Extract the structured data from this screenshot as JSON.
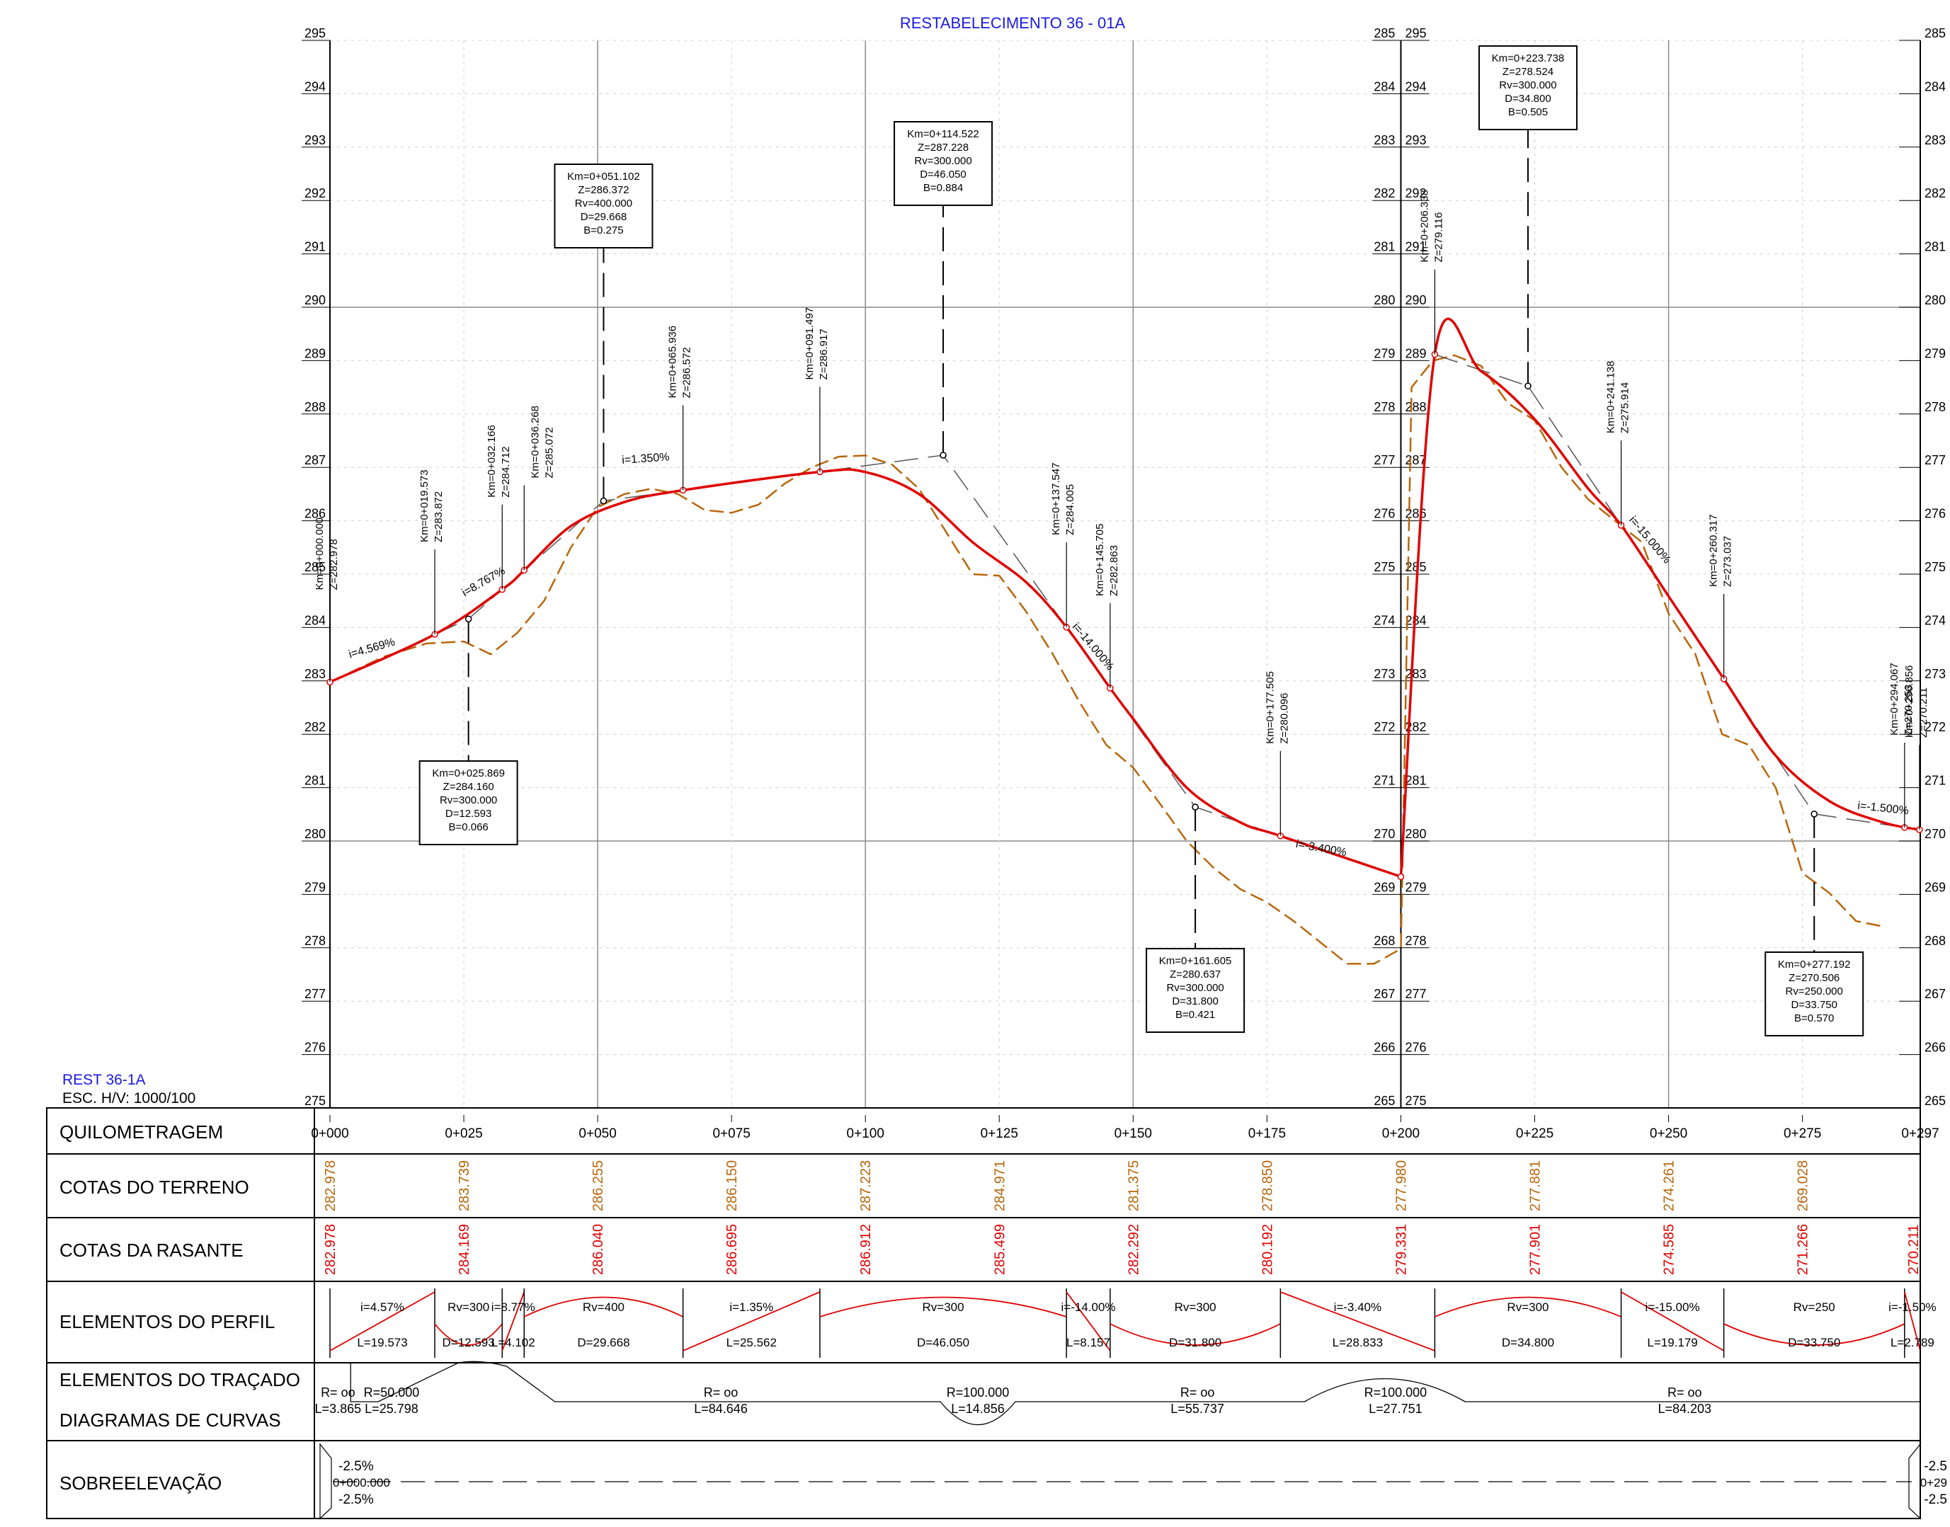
{
  "title": "RESTABELECIMENTO 36 - 01A",
  "drawing_label": {
    "name": "REST 36-1A",
    "scale": "ESC. H/V: 1000/100"
  },
  "colors": {
    "grade": "#e00000",
    "terrain": "#b8660b",
    "title_blue": "#1a1ae6",
    "grid": "#9a9a9a",
    "tangent": "#555555"
  },
  "axes": {
    "left_elev_ticks": [
      "295",
      "294",
      "293",
      "292",
      "291",
      "290",
      "289",
      "288",
      "287",
      "286",
      "285",
      "284",
      "283",
      "282",
      "281",
      "280",
      "279",
      "278",
      "277",
      "276",
      "275"
    ],
    "mid_left_ticks": [
      "285",
      "284",
      "283",
      "282",
      "281",
      "280",
      "279",
      "278",
      "277",
      "276",
      "275",
      "274",
      "273",
      "272",
      "271",
      "270",
      "269",
      "268",
      "267",
      "266",
      "265"
    ],
    "mid_right_ticks": [
      "295",
      "294",
      "293",
      "292",
      "291",
      "290",
      "289",
      "288",
      "287",
      "286",
      "285",
      "284",
      "283",
      "282",
      "281",
      "280",
      "279",
      "278",
      "277",
      "276",
      "275"
    ],
    "right_ticks": [
      "285",
      "284",
      "283",
      "282",
      "281",
      "280",
      "279",
      "278",
      "277",
      "276",
      "275",
      "274",
      "273",
      "272",
      "271",
      "270",
      "269",
      "268",
      "267",
      "266",
      "265"
    ]
  },
  "chart_data": {
    "type": "line",
    "title": "RESTABELECIMENTO 36 - 01A",
    "x_unit": "km offset (m)",
    "xlim": [
      0,
      297
    ],
    "panels": [
      {
        "x_range": [
          0,
          200
        ],
        "elev_range": [
          275,
          295
        ]
      },
      {
        "x_range": [
          200,
          297
        ],
        "elev_range": [
          265,
          285
        ]
      }
    ],
    "series": [
      {
        "key": "grade",
        "x": [
          0,
          19.573,
          25.869,
          32.166,
          36.268,
          51.102,
          65.936,
          91.497,
          114.522,
          137.547,
          145.705,
          161.605,
          177.505,
          200,
          206.338,
          223.738,
          241.138,
          260.317,
          277.192,
          294.067,
          296.856
        ],
        "y": [
          282.978,
          283.872,
          284.16,
          284.712,
          285.072,
          286.372,
          286.572,
          286.917,
          287.228,
          284.005,
          282.863,
          280.637,
          280.096,
          279.331,
          279.116,
          278.524,
          275.914,
          273.037,
          270.506,
          270.253,
          270.211
        ]
      },
      {
        "key": "terrain",
        "x": [
          0,
          10,
          18,
          25,
          30,
          35,
          40,
          45,
          50,
          55,
          60,
          65,
          70,
          75,
          80,
          85,
          90,
          95,
          100,
          105,
          110,
          115,
          120,
          125,
          130,
          135,
          140,
          145,
          150,
          155,
          160,
          165,
          170,
          175,
          180,
          185,
          190,
          195,
          200,
          202,
          206,
          210,
          215,
          220,
          225,
          230,
          235,
          240,
          245,
          250,
          255,
          260,
          265,
          270,
          275,
          280,
          285,
          290
        ],
        "y": [
          282.978,
          283.45,
          283.7,
          283.739,
          283.5,
          283.9,
          284.5,
          285.5,
          286.255,
          286.5,
          286.6,
          286.5,
          286.2,
          286.15,
          286.3,
          286.7,
          287.0,
          287.2,
          287.223,
          287.05,
          286.6,
          285.8,
          285.0,
          284.971,
          284.3,
          283.5,
          282.6,
          281.8,
          281.375,
          280.7,
          280.0,
          279.5,
          279.1,
          278.85,
          278.5,
          278.1,
          277.7,
          277.7,
          277.98,
          278.5,
          279.0,
          279.1,
          278.9,
          278.2,
          277.881,
          277.0,
          276.4,
          276.0,
          275.6,
          274.261,
          273.5,
          272.0,
          271.8,
          271.0,
          269.4,
          269.028,
          268.5,
          268.4
        ]
      }
    ],
    "vertices_labels": [
      {
        "km": "Km=0+000.000",
        "z": "Z=282.978"
      },
      {
        "km": "Km=0+019.573",
        "z": "Z=283.872"
      },
      {
        "km": "Km=0+032.166",
        "z": "Z=284.712"
      },
      {
        "km": "Km=0+036.268",
        "z": "Z=285.072"
      },
      {
        "km": "Km=0+065.936",
        "z": "Z=286.572"
      },
      {
        "km": "Km=0+091.497",
        "z": "Z=286.917"
      },
      {
        "km": "Km=0+137.547",
        "z": "Z=284.005"
      },
      {
        "km": "Km=0+145.705",
        "z": "Z=282.863"
      },
      {
        "km": "Km=0+177.505",
        "z": "Z=280.096"
      },
      {
        "km": "Km=0+206.338",
        "z": "Z=279.116"
      },
      {
        "km": "Km=0+241.138",
        "z": "Z=275.914"
      },
      {
        "km": "Km=0+260.317",
        "z": "Z=273.037"
      },
      {
        "km": "Km=0+294.067",
        "z": "Z=270.253"
      },
      {
        "km": "Km=0+296.856",
        "z": "Z=270.211"
      }
    ],
    "pvi_boxes": [
      {
        "lines": [
          "Km=0+025.869",
          "Z=284.160",
          "Rv=300.000",
          "D=12.593",
          "B=0.066"
        ]
      },
      {
        "lines": [
          "Km=0+051.102",
          "Z=286.372",
          "Rv=400.000",
          "D=29.668",
          "B=0.275"
        ]
      },
      {
        "lines": [
          "Km=0+114.522",
          "Z=287.228",
          "Rv=300.000",
          "D=46.050",
          "B=0.884"
        ]
      },
      {
        "lines": [
          "Km=0+161.605",
          "Z=280.637",
          "Rv=300.000",
          "D=31.800",
          "B=0.421"
        ]
      },
      {
        "lines": [
          "Km=0+223.738",
          "Z=278.524",
          "Rv=300.000",
          "D=34.800",
          "B=0.505"
        ]
      },
      {
        "lines": [
          "Km=0+277.192",
          "Z=270.506",
          "Rv=250.000",
          "D=33.750",
          "B=0.570"
        ]
      }
    ],
    "slope_labels": [
      "i=4.569%",
      "i=8.767%",
      "i=1.350%",
      "i=-14.000%",
      "i=-3.400%",
      "i=-15.000%",
      "i=-1.500%"
    ]
  },
  "band": {
    "row_titles": [
      "QUILOMETRAGEM",
      "COTAS DO TERRENO",
      "COTAS DA RASANTE",
      "ELEMENTOS DO PERFIL",
      "ELEMENTOS DO TRAÇADO",
      "DIAGRAMAS DE CURVAS",
      "SOBREELEVAÇÃO"
    ],
    "stations": [
      "0+000",
      "0+025",
      "0+050",
      "0+075",
      "0+100",
      "0+125",
      "0+150",
      "0+175",
      "0+200",
      "0+225",
      "0+250",
      "0+275",
      "0+297"
    ],
    "terrain_values": [
      "282.978",
      "283.739",
      "286.255",
      "286.150",
      "287.223",
      "284.971",
      "281.375",
      "278.850",
      "277.980",
      "277.881",
      "274.261",
      "269.028"
    ],
    "grade_values": [
      "282.978",
      "284.169",
      "286.040",
      "286.695",
      "286.912",
      "285.499",
      "282.292",
      "280.192",
      "279.331",
      "277.901",
      "274.585",
      "271.266",
      "270.211"
    ],
    "profile_elements": [
      {
        "top": "i=4.57%",
        "bottom": "L=19.573"
      },
      {
        "top": "Rv=300",
        "bottom": "D=12.593"
      },
      {
        "top": "i=8.77%",
        "bottom": "L=4.102"
      },
      {
        "top": "Rv=400",
        "bottom": "D=29.668"
      },
      {
        "top": "i=1.35%",
        "bottom": "L=25.562"
      },
      {
        "top": "Rv=300",
        "bottom": "D=46.050"
      },
      {
        "top": "i=-14.00%",
        "bottom": "L=8.157"
      },
      {
        "top": "Rv=300",
        "bottom": "D=31.800"
      },
      {
        "top": "i=-3.40%",
        "bottom": "L=28.833"
      },
      {
        "top": "Rv=300",
        "bottom": "D=34.800"
      },
      {
        "top": "i=-15.00%",
        "bottom": "L=19.179"
      },
      {
        "top": "Rv=250",
        "bottom": "D=33.750"
      },
      {
        "top": "i=-1.50%",
        "bottom": "L=2.789"
      }
    ],
    "alignment_elements": [
      {
        "r": "R= oo",
        "l": "L=3.865"
      },
      {
        "r": "R=50.000",
        "l": "L=25.798"
      },
      {
        "r": "R= oo",
        "l": "L=84.646"
      },
      {
        "r": "R=100.000",
        "l": "L=14.856"
      },
      {
        "r": "R= oo",
        "l": "L=55.737"
      },
      {
        "r": "R=100.000",
        "l": "L=27.751"
      },
      {
        "r": "R= oo",
        "l": "L=84.203"
      }
    ],
    "superelevation": {
      "top": "-2.5%",
      "mid": "0+000.000",
      "bottom": "-2.5%",
      "right_top": "-2.5",
      "right_mid": "0+29",
      "right_bottom": "-2.5"
    }
  }
}
